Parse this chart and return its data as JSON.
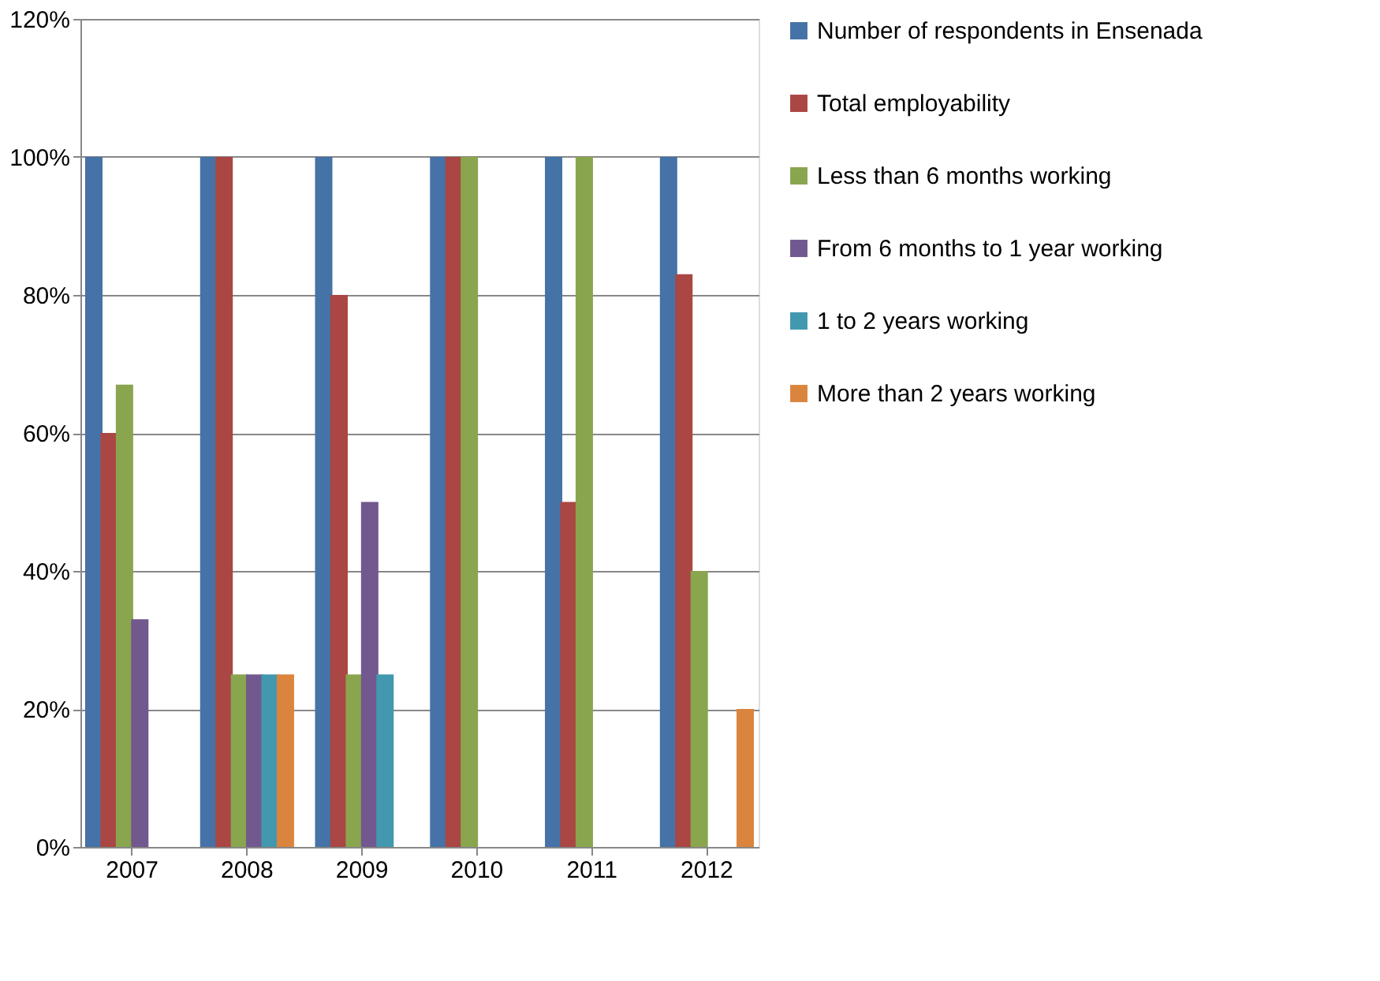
{
  "chart_data": {
    "type": "bar",
    "categories": [
      "2007",
      "2008",
      "2009",
      "2010",
      "2011",
      "2012"
    ],
    "series": [
      {
        "name": "Number of respondents in Ensenada",
        "color": "#4572a7",
        "values": [
          100,
          100,
          100,
          100,
          100,
          100
        ]
      },
      {
        "name": "Total employability",
        "color": "#aa4643",
        "values": [
          60,
          100,
          80,
          100,
          50,
          83
        ]
      },
      {
        "name": "Less than 6 months working",
        "color": "#89a54e",
        "values": [
          67,
          25,
          25,
          100,
          100,
          40
        ]
      },
      {
        "name": "From 6 months to 1 year working",
        "color": "#71588f",
        "values": [
          33,
          25,
          50,
          null,
          null,
          null
        ]
      },
      {
        "name": "1 to 2 years working",
        "color": "#4198af",
        "values": [
          null,
          25,
          25,
          null,
          null,
          null
        ]
      },
      {
        "name": "More than 2 years working",
        "color": "#db843d",
        "values": [
          null,
          25,
          null,
          null,
          null,
          20
        ]
      }
    ],
    "ylim": [
      0,
      120
    ],
    "yticks": [
      {
        "value": 0,
        "label": "0%"
      },
      {
        "value": 20,
        "label": "20%"
      },
      {
        "value": 40,
        "label": "40%"
      },
      {
        "value": 60,
        "label": "60%"
      },
      {
        "value": 80,
        "label": "80%"
      },
      {
        "value": 100,
        "label": "100%"
      },
      {
        "value": 120,
        "label": "120%"
      }
    ],
    "grid": "y",
    "legend": "right"
  }
}
